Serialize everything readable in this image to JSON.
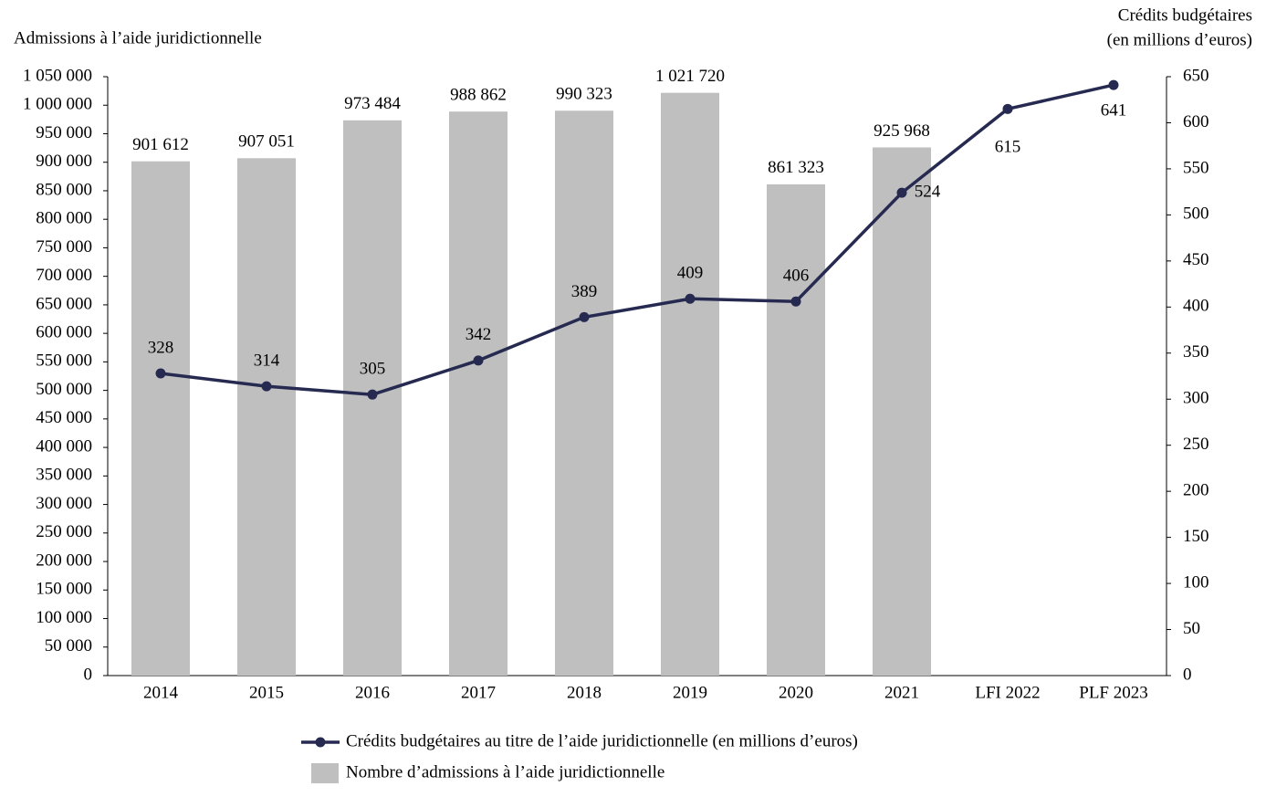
{
  "chart_data": {
    "type": "combo",
    "y_label": "Admissions à l’aide juridictionnelle",
    "y2_label": [
      "Crédits budgétaires",
      "(en millions d’euros)"
    ],
    "categories": [
      "2014",
      "2015",
      "2016",
      "2017",
      "2018",
      "2019",
      "2020",
      "2021",
      "LFI 2022",
      "PLF 2023"
    ],
    "series": [
      {
        "name": "Crédits budgétaires au titre de l’aide juridictionnelle (en millions d’euros)",
        "type": "line",
        "axis": "y2",
        "color": "#262a50",
        "values": [
          328,
          314,
          305,
          342,
          389,
          409,
          406,
          524,
          615,
          641
        ]
      },
      {
        "name": "Nombre d’admissions à l’aide juridictionnelle",
        "type": "bar",
        "color": "#bfbfbf",
        "values": [
          901612,
          907051,
          973484,
          988862,
          990323,
          1021720,
          861323,
          925968,
          null,
          null
        ],
        "value_labels": [
          "901 612",
          "907 051",
          "973 484",
          "988 862",
          "990 323",
          "1 021 720",
          "861 323",
          "925 968",
          null,
          null
        ]
      }
    ],
    "ylim": [
      0,
      1050000
    ],
    "yticks": [
      0,
      {
        "value": 50000,
        "label": "50 000"
      },
      {
        "value": 100000,
        "label": "100 000"
      },
      {
        "value": 150000,
        "label": "150 000"
      },
      {
        "value": 200000,
        "label": "200 000"
      },
      {
        "value": 250000,
        "label": "250 000"
      },
      {
        "value": 300000,
        "label": "300 000"
      },
      {
        "value": 350000,
        "label": "350 000"
      },
      {
        "value": 400000,
        "label": "400 000"
      },
      {
        "value": 450000,
        "label": "450 000"
      },
      {
        "value": 500000,
        "label": "500 000"
      },
      {
        "value": 550000,
        "label": "550 000"
      },
      {
        "value": 600000,
        "label": "600 000"
      },
      {
        "value": 650000,
        "label": "650 000"
      },
      {
        "value": 700000,
        "label": "700 000"
      },
      {
        "value": 750000,
        "label": "750 000"
      },
      {
        "value": 800000,
        "label": "800 000"
      },
      {
        "value": 850000,
        "label": "850 000"
      },
      {
        "value": 900000,
        "label": "900 000"
      },
      {
        "value": 950000,
        "label": "950 000"
      },
      {
        "value": 1000000,
        "label": "1 000 000"
      },
      {
        "value": 1050000,
        "label": "1 050 000"
      }
    ],
    "y2lim": [
      0,
      650
    ],
    "y2ticks": [
      0,
      50,
      100,
      150,
      200,
      250,
      300,
      350,
      400,
      450,
      500,
      550,
      600,
      650
    ],
    "grid": false
  }
}
